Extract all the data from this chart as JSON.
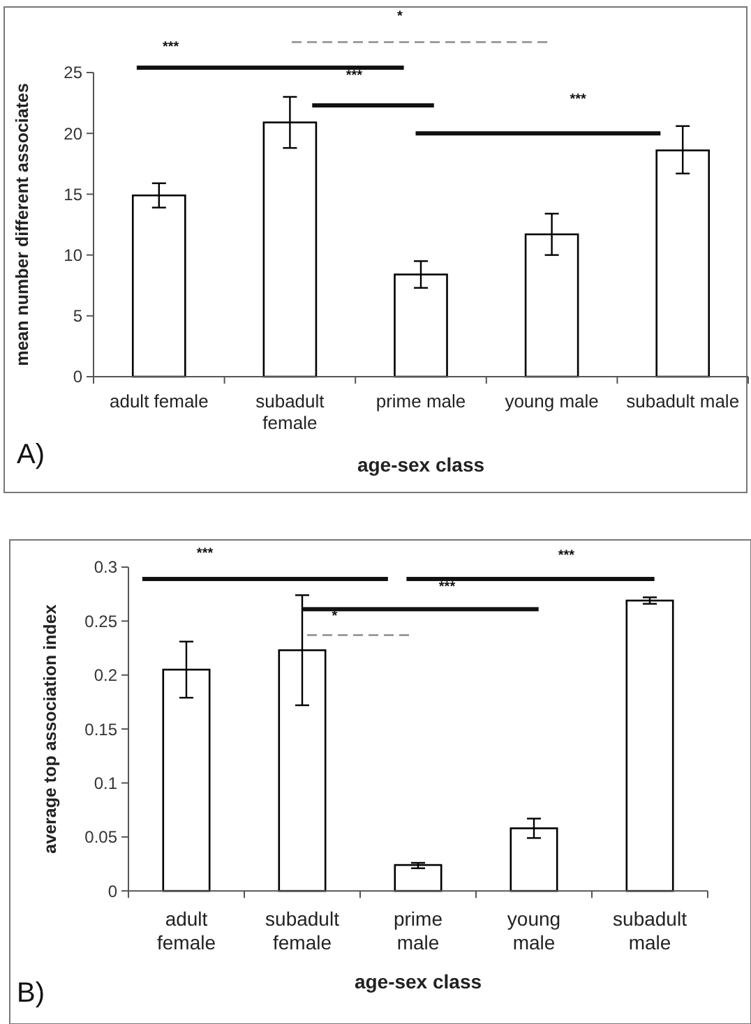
{
  "chart_data": [
    {
      "type": "bar",
      "categories": [
        "adult female",
        "subadult female",
        "prime male",
        "young male",
        "subadult male"
      ],
      "values": [
        14.9,
        20.9,
        8.4,
        11.7,
        18.6
      ],
      "color": "#ffffff",
      "errors": [
        [
          13.9,
          15.9
        ],
        [
          18.8,
          23.0
        ],
        [
          7.3,
          9.5
        ],
        [
          10.0,
          13.4
        ],
        [
          16.7,
          20.6
        ]
      ],
      "xlabel": "age-sex class",
      "ylabel": "mean number different associates",
      "ylim": [
        0,
        25
      ],
      "yticks": [
        0,
        5,
        10,
        15,
        20,
        25
      ],
      "annotations": [
        "A)",
        "***",
        "*",
        "***",
        "***"
      ]
    },
    {
      "type": "bar",
      "categories": [
        "adult female",
        "subadult female",
        "prime male",
        "young male",
        "subadult male"
      ],
      "values": [
        0.205,
        0.223,
        0.024,
        0.058,
        0.269
      ],
      "color": "#ffffff",
      "errors": [
        [
          0.179,
          0.231
        ],
        [
          0.172,
          0.274
        ],
        [
          0.021,
          0.026
        ],
        [
          0.049,
          0.067
        ],
        [
          0.266,
          0.272
        ]
      ],
      "xlabel": "age-sex class",
      "ylabel": "average top association index",
      "ylim": [
        0,
        0.3
      ],
      "yticks": [
        0,
        0.05,
        0.1,
        0.15,
        0.2,
        0.25,
        0.3
      ],
      "annotations": [
        "B)",
        "***",
        "***",
        "***",
        "*"
      ]
    }
  ]
}
